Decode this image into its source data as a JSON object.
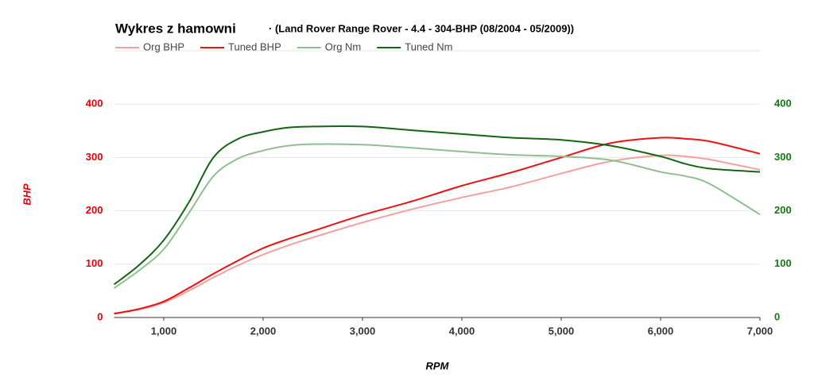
{
  "chart_data": {
    "type": "line",
    "title": "Wykres z hamowni",
    "subtitle": "· (Land Rover Range Rover - 4.4 - 304-BHP (08/2004 - 05/2009))",
    "xlabel": "RPM",
    "ylabel": "BHP",
    "x": [
      500,
      750,
      1000,
      1250,
      1500,
      1750,
      2000,
      2250,
      2500,
      3000,
      3500,
      4000,
      4500,
      5000,
      5500,
      6000,
      6250,
      6500,
      7000
    ],
    "xlim": [
      500,
      7000
    ],
    "xticks": [
      {
        "value": 1000,
        "label": "1,000"
      },
      {
        "value": 2000,
        "label": "2,000"
      },
      {
        "value": 3000,
        "label": "3,000"
      },
      {
        "value": 4000,
        "label": "4,000"
      },
      {
        "value": 5000,
        "label": "5,000"
      },
      {
        "value": 6000,
        "label": "6,000"
      },
      {
        "value": 7000,
        "label": "7,000"
      }
    ],
    "ylim": [
      0,
      500
    ],
    "yticks": [
      0,
      100,
      200,
      300,
      400
    ],
    "y_color": "#e8000b",
    "y2lim": [
      0,
      500
    ],
    "y2ticks": [
      0,
      100,
      200,
      300,
      400
    ],
    "y2_color": "#137a13",
    "grid": true,
    "series": [
      {
        "name": "Org BHP",
        "color": "#f4a0a0",
        "values": [
          8,
          15,
          28,
          50,
          75,
          98,
          118,
          135,
          150,
          178,
          203,
          225,
          245,
          270,
          293,
          304,
          302,
          296,
          277
        ]
      },
      {
        "name": "Tuned BHP",
        "color": "#ee1111",
        "values": [
          7,
          16,
          30,
          55,
          82,
          107,
          130,
          147,
          162,
          192,
          218,
          247,
          272,
          300,
          327,
          337,
          335,
          330,
          307
        ]
      },
      {
        "name": "Org Nm",
        "color": "#8fbf8f",
        "axis": "y2",
        "values": [
          55,
          88,
          128,
          195,
          265,
          298,
          313,
          322,
          325,
          324,
          318,
          311,
          305,
          302,
          295,
          273,
          265,
          250,
          193
        ]
      },
      {
        "name": "Tuned Nm",
        "color": "#116611",
        "axis": "y2",
        "values": [
          62,
          98,
          145,
          215,
          300,
          335,
          348,
          356,
          358,
          358,
          351,
          344,
          337,
          333,
          322,
          302,
          288,
          279,
          273
        ]
      }
    ]
  }
}
